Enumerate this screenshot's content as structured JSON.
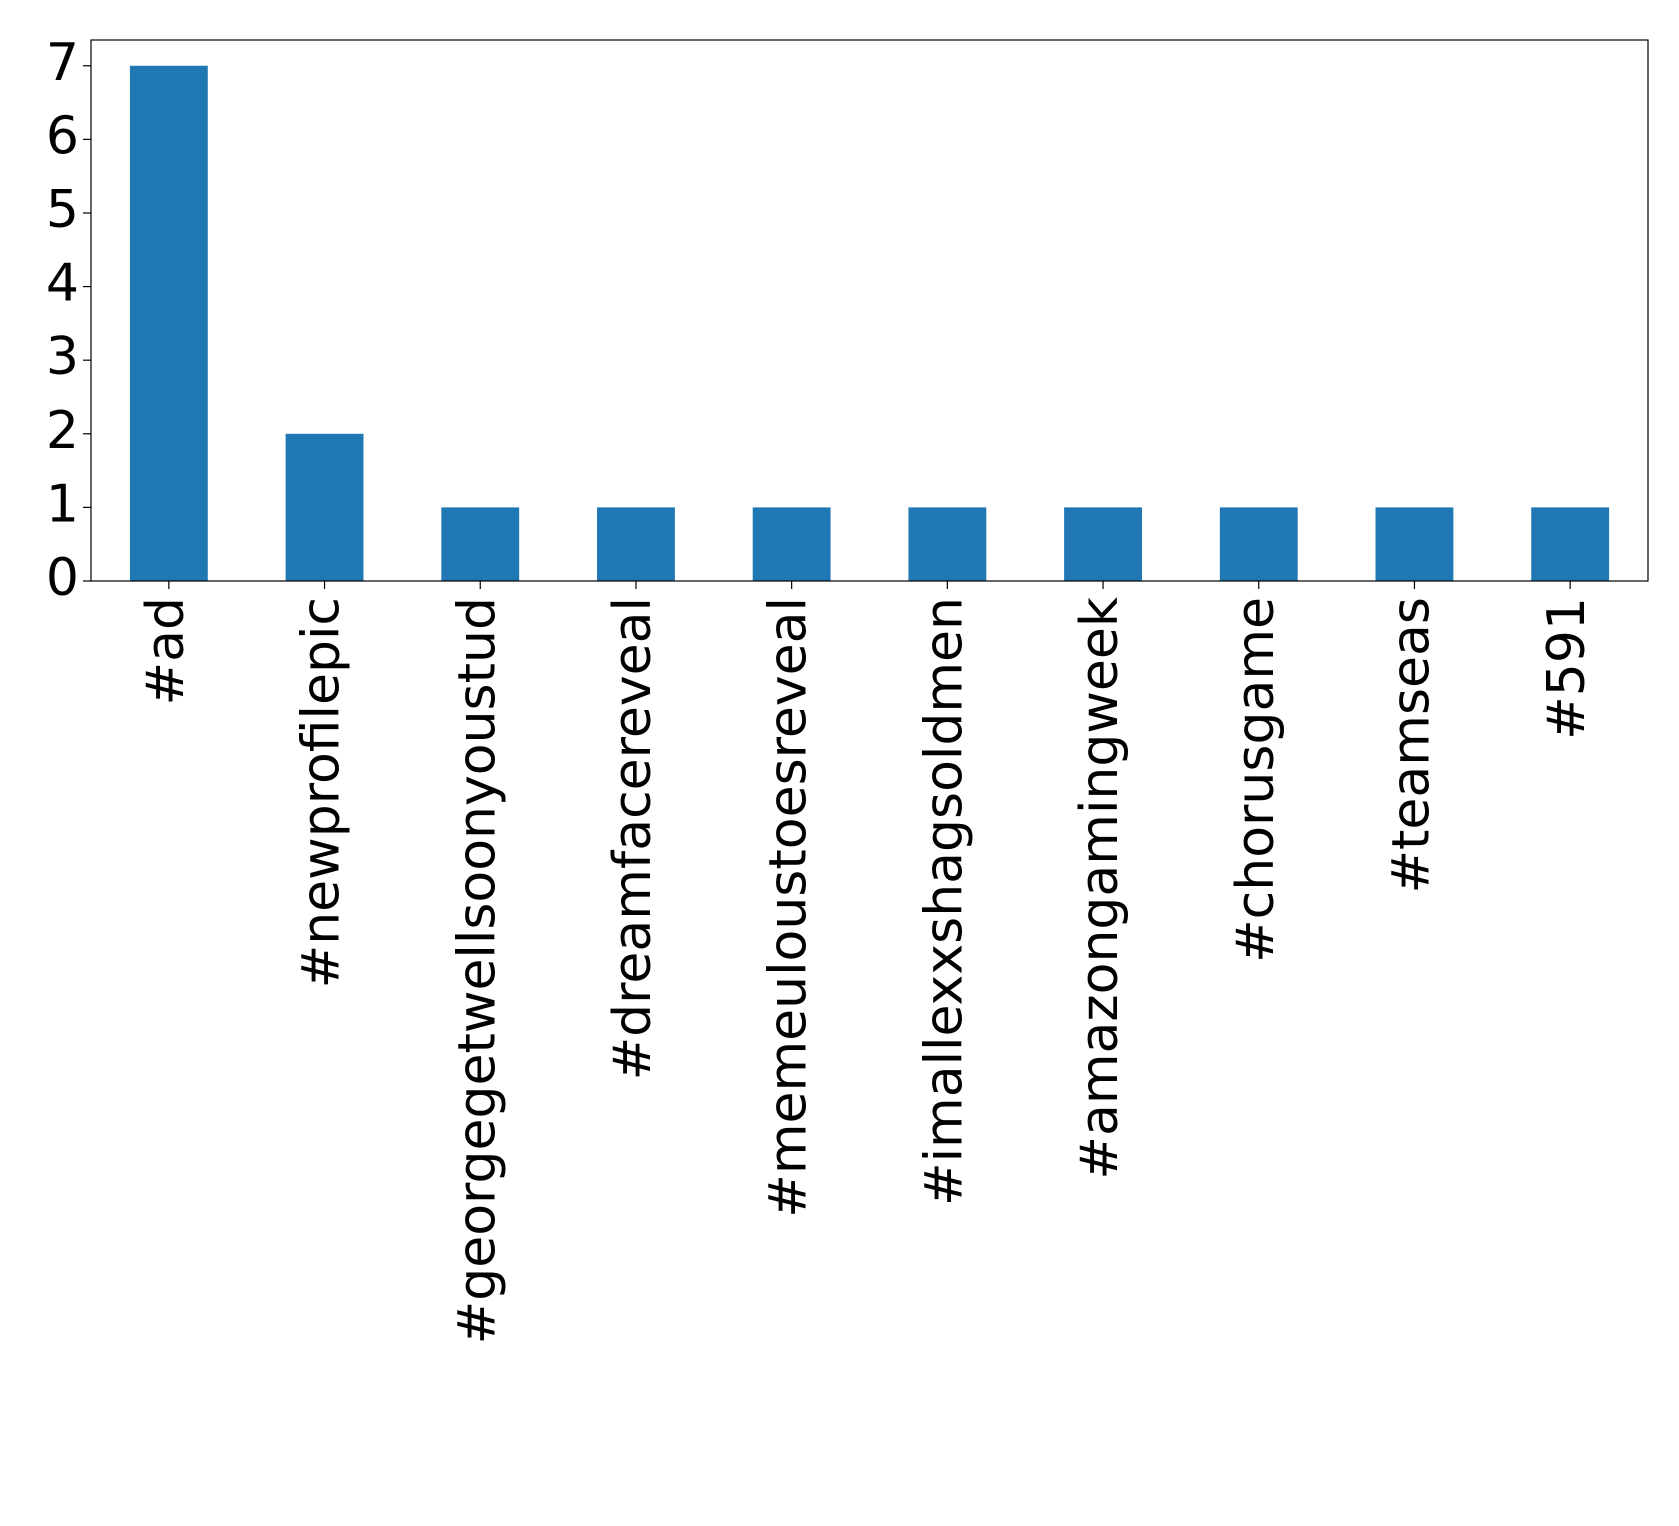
{
  "chart_data": {
    "type": "bar",
    "categories": [
      "#ad",
      "#newprofilepic",
      "#georgegetwellsoonyoustud",
      "#dreamfacereveal",
      "#memeuloustoesreveal",
      "#imallexxshagsoldmen",
      "#amazongamingweek",
      "#chorusgame",
      "#teamseas",
      "#591"
    ],
    "values": [
      7,
      2,
      1,
      1,
      1,
      1,
      1,
      1,
      1,
      1
    ],
    "color": "#1f77b4",
    "ylim": [
      0,
      7.35
    ],
    "yticks": [
      0,
      1,
      2,
      3,
      4,
      5,
      6,
      7
    ],
    "grid": false
  }
}
